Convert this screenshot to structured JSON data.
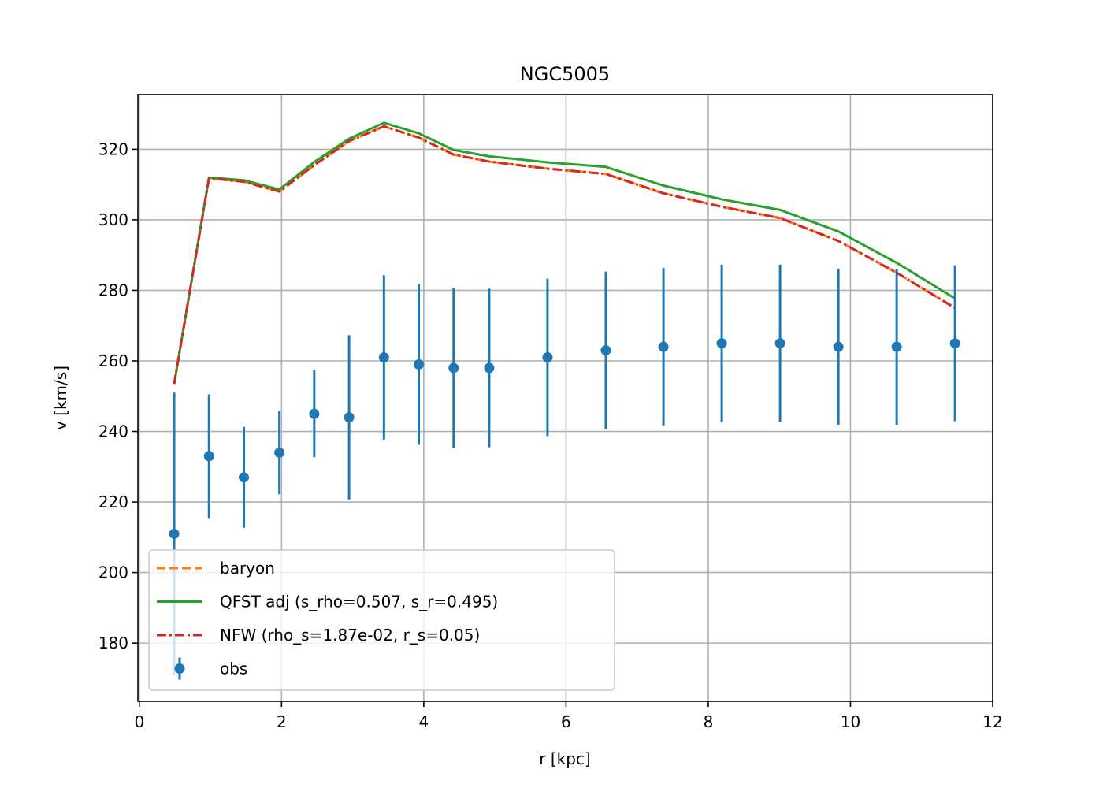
{
  "chart_data": {
    "type": "line",
    "title": "NGC5005",
    "xlabel": "r [kpc]",
    "ylabel": "v [km/s]",
    "xlim": [
      -0.02,
      12.0
    ],
    "ylim": [
      163.5,
      335.5
    ],
    "xticks": [
      0,
      2,
      4,
      6,
      8,
      10,
      12
    ],
    "yticks": [
      180,
      200,
      220,
      240,
      260,
      280,
      300,
      320
    ],
    "grid": true,
    "legend_position": "lower-left",
    "x": [
      0.49,
      0.98,
      1.47,
      1.97,
      2.46,
      2.95,
      3.44,
      3.93,
      4.42,
      4.92,
      5.74,
      6.56,
      7.37,
      8.19,
      9.01,
      9.83,
      10.65,
      11.47
    ],
    "series": [
      {
        "name": "baryon",
        "style": "dashed",
        "color": "#ff7f0e",
        "values": [
          253.5,
          311.8,
          310.8,
          308.0,
          315.5,
          322.3,
          326.5,
          323.3,
          318.5,
          316.5,
          314.5,
          313.0,
          307.5,
          303.7,
          300.5,
          294.0,
          285.0,
          275.0
        ]
      },
      {
        "name": "QFST adj (s_rho=0.507, s_r=0.495)",
        "style": "solid",
        "color": "#2ca02c",
        "values": [
          253.5,
          312.0,
          311.2,
          308.6,
          316.4,
          323.0,
          327.5,
          324.5,
          319.8,
          318.0,
          316.3,
          315.0,
          309.7,
          305.8,
          302.8,
          296.7,
          287.8,
          277.7
        ]
      },
      {
        "name": "NFW (rho_s=1.87e-02, r_s=0.05)",
        "style": "dashdot",
        "color": "#d62728",
        "values": [
          253.5,
          311.8,
          310.8,
          308.0,
          315.5,
          322.3,
          326.5,
          323.3,
          318.5,
          316.5,
          314.5,
          313.0,
          307.5,
          303.7,
          300.5,
          294.0,
          285.0,
          275.0
        ]
      },
      {
        "name": "obs",
        "style": "errorbar",
        "color": "#1f77b4",
        "values": [
          211,
          233,
          227,
          234,
          245,
          244,
          261,
          259,
          258,
          258,
          261,
          263,
          264,
          265,
          265,
          264,
          264,
          265
        ],
        "errors": [
          40,
          17.5,
          14.3,
          11.8,
          12.3,
          23.3,
          23.3,
          22.8,
          22.7,
          22.5,
          22.3,
          22.3,
          22.3,
          22.3,
          22.3,
          22.1,
          22.1,
          22.1
        ]
      }
    ]
  }
}
